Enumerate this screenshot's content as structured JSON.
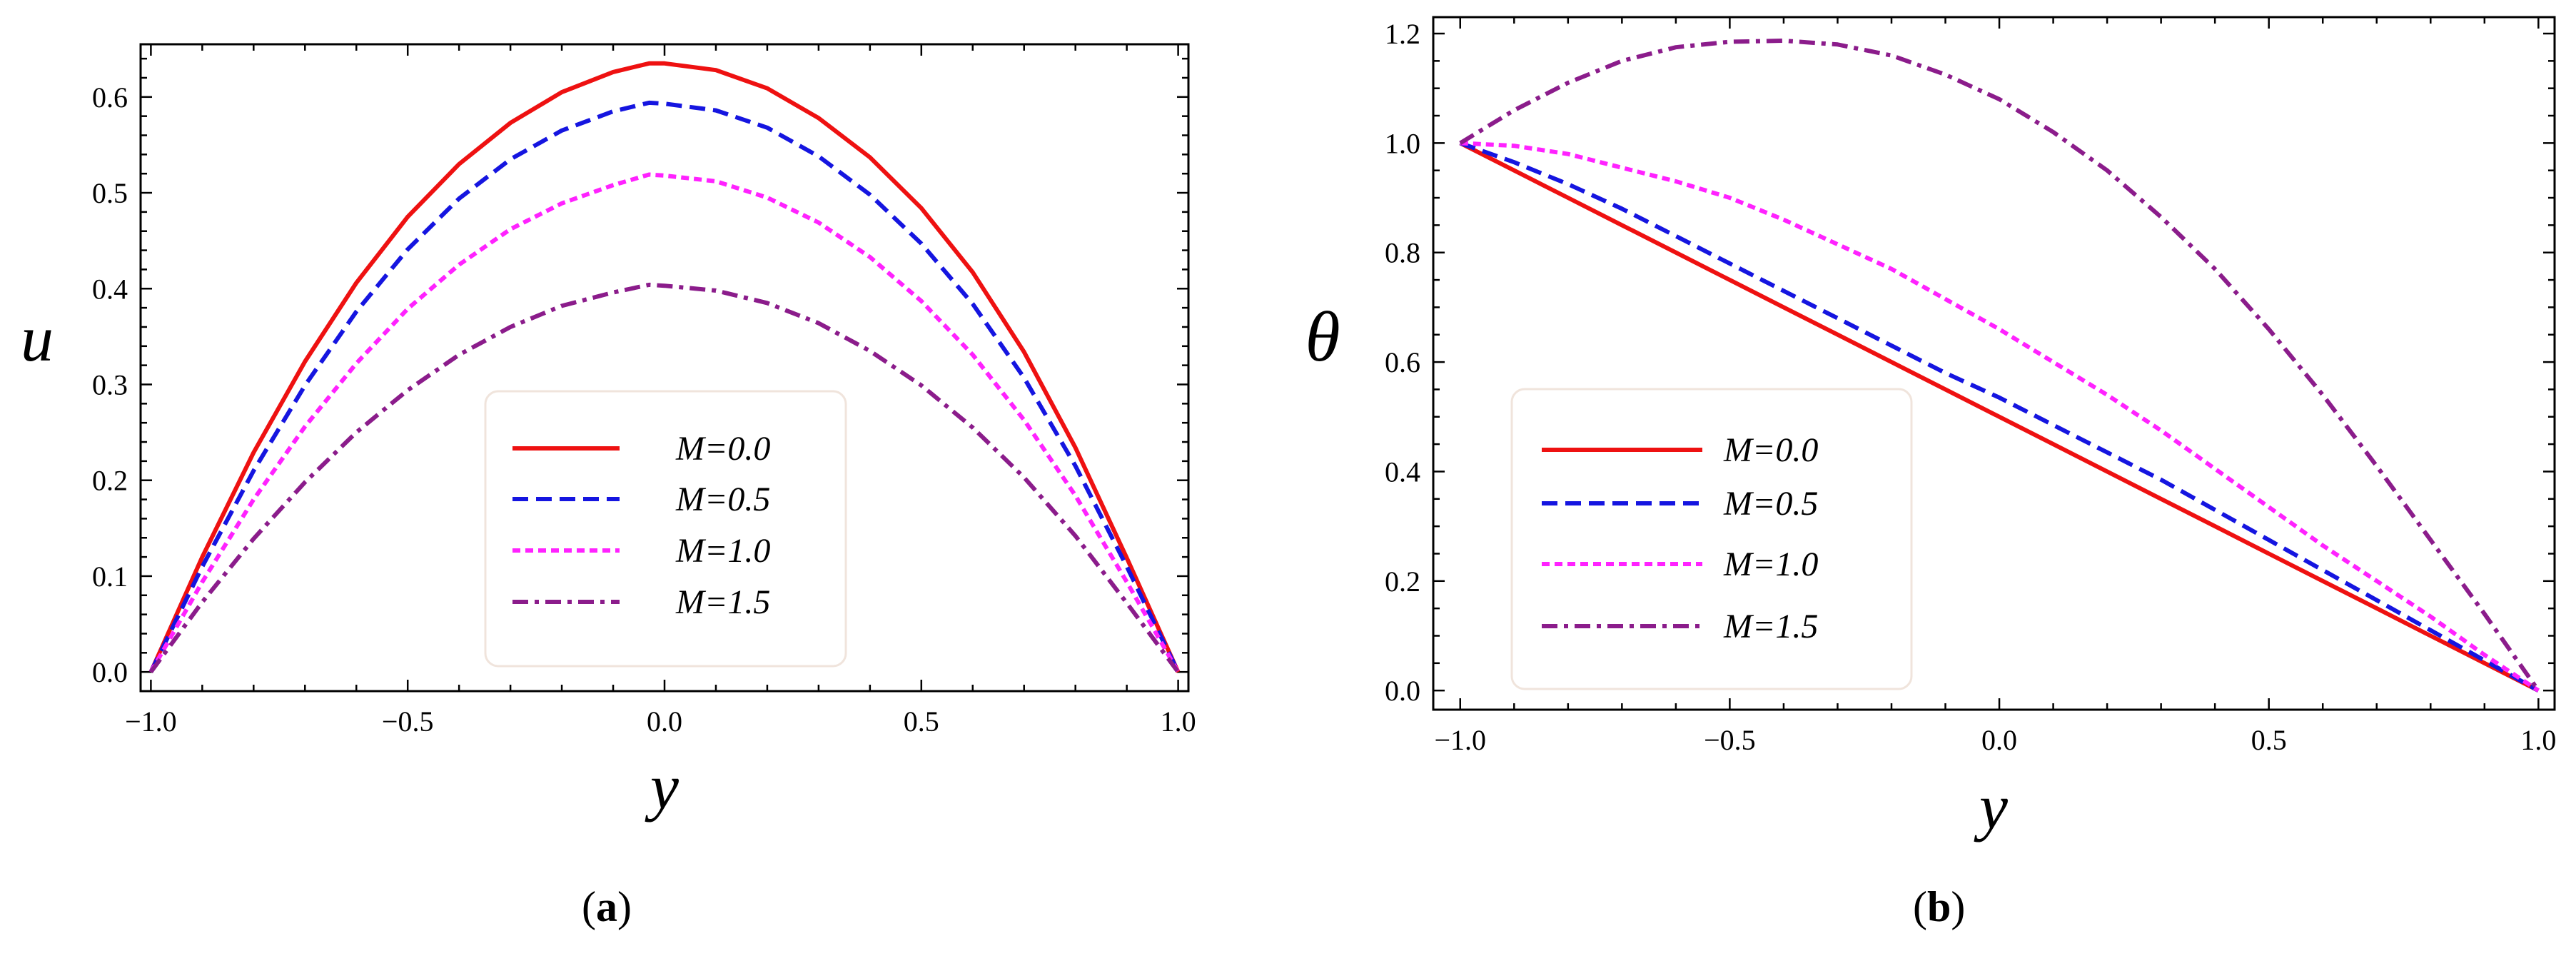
{
  "chart_data": [
    {
      "type": "line",
      "caption_open": "(",
      "caption_letter": "a",
      "caption_close": ")",
      "xlabel": "y",
      "ylabel": "u",
      "xlim": [
        -1.02,
        1.02
      ],
      "ylim": [
        -0.02,
        0.655
      ],
      "xticks": [
        -1.0,
        -0.5,
        0.0,
        0.5,
        1.0
      ],
      "xtick_labels": [
        "−1.0",
        "−0.5",
        "0.0",
        "0.5",
        "1.0"
      ],
      "yticks": [
        0.0,
        0.1,
        0.2,
        0.3,
        0.4,
        0.5,
        0.6
      ],
      "ytick_labels": [
        "0.0",
        "0.1",
        "0.2",
        "0.3",
        "0.4",
        "0.5",
        "0.6"
      ],
      "legend_position": "bottom-right",
      "x": [
        -1.0,
        -0.9,
        -0.8,
        -0.7,
        -0.6,
        -0.5,
        -0.4,
        -0.3,
        -0.2,
        -0.1,
        -0.03,
        0.0,
        0.1,
        0.2,
        0.3,
        0.4,
        0.5,
        0.6,
        0.7,
        0.8,
        0.9,
        1.0
      ],
      "series": [
        {
          "name": "M=0.0",
          "color": "#ee1111",
          "dash": "solid",
          "values": [
            0.0,
            0.12,
            0.229,
            0.324,
            0.406,
            0.475,
            0.53,
            0.573,
            0.605,
            0.626,
            0.635,
            0.635,
            0.628,
            0.609,
            0.578,
            0.537,
            0.484,
            0.417,
            0.334,
            0.234,
            0.119,
            0.0
          ]
        },
        {
          "name": "M=0.5",
          "color": "#1515e0",
          "dash": "dashed",
          "values": [
            0.0,
            0.11,
            0.21,
            0.299,
            0.376,
            0.441,
            0.494,
            0.535,
            0.565,
            0.585,
            0.594,
            0.593,
            0.586,
            0.568,
            0.538,
            0.498,
            0.447,
            0.384,
            0.307,
            0.215,
            0.11,
            0.0
          ]
        },
        {
          "name": "M=1.0",
          "color": "#ff22ff",
          "dash": "dotted",
          "values": [
            0.0,
            0.094,
            0.18,
            0.256,
            0.322,
            0.379,
            0.425,
            0.462,
            0.489,
            0.508,
            0.519,
            0.518,
            0.512,
            0.495,
            0.469,
            0.433,
            0.387,
            0.331,
            0.263,
            0.184,
            0.094,
            0.0
          ]
        },
        {
          "name": "M=1.5",
          "color": "#8b1c8b",
          "dash": "dashdot",
          "values": [
            0.0,
            0.073,
            0.139,
            0.198,
            0.25,
            0.294,
            0.331,
            0.36,
            0.382,
            0.396,
            0.404,
            0.403,
            0.398,
            0.385,
            0.364,
            0.335,
            0.299,
            0.255,
            0.203,
            0.142,
            0.072,
            0.0
          ]
        }
      ]
    },
    {
      "type": "line",
      "caption_open": "(",
      "caption_letter": "b",
      "caption_close": ")",
      "xlabel": "y",
      "ylabel": "θ",
      "xlim": [
        -1.05,
        1.03
      ],
      "ylim": [
        -0.035,
        1.23
      ],
      "xticks": [
        -1.0,
        -0.5,
        0.0,
        0.5,
        1.0
      ],
      "xtick_labels": [
        "−1.0",
        "−0.5",
        "0.0",
        "0.5",
        "1.0"
      ],
      "yticks": [
        0.0,
        0.2,
        0.4,
        0.6,
        0.8,
        1.0,
        1.2
      ],
      "ytick_labels": [
        "0.0",
        "0.2",
        "0.4",
        "0.6",
        "0.8",
        "1.0",
        "1.2"
      ],
      "legend_position": "bottom-left",
      "x": [
        -1.0,
        -0.9,
        -0.8,
        -0.7,
        -0.6,
        -0.5,
        -0.4,
        -0.3,
        -0.2,
        -0.1,
        0.0,
        0.1,
        0.2,
        0.3,
        0.4,
        0.5,
        0.6,
        0.7,
        0.8,
        0.9,
        1.0
      ],
      "series": [
        {
          "name": "M=0.0",
          "color": "#ee1111",
          "dash": "solid",
          "values": [
            1.0,
            0.95,
            0.9,
            0.85,
            0.8,
            0.75,
            0.7,
            0.65,
            0.6,
            0.55,
            0.5,
            0.45,
            0.4,
            0.35,
            0.3,
            0.25,
            0.2,
            0.15,
            0.1,
            0.05,
            0.0
          ]
        },
        {
          "name": "M=0.5",
          "color": "#1515e0",
          "dash": "dashed",
          "values": [
            1.0,
            0.965,
            0.925,
            0.88,
            0.83,
            0.78,
            0.73,
            0.68,
            0.63,
            0.58,
            0.535,
            0.485,
            0.435,
            0.385,
            0.33,
            0.275,
            0.22,
            0.165,
            0.11,
            0.055,
            0.0
          ]
        },
        {
          "name": "M=1.0",
          "color": "#ff22ff",
          "dash": "dotted",
          "values": [
            1.0,
            0.995,
            0.98,
            0.955,
            0.93,
            0.9,
            0.86,
            0.815,
            0.77,
            0.715,
            0.66,
            0.6,
            0.54,
            0.475,
            0.405,
            0.335,
            0.265,
            0.2,
            0.135,
            0.065,
            0.0
          ]
        },
        {
          "name": "M=1.5",
          "color": "#8b1c8b",
          "dash": "dashdot",
          "values": [
            1.0,
            1.06,
            1.11,
            1.15,
            1.175,
            1.185,
            1.187,
            1.18,
            1.16,
            1.125,
            1.08,
            1.02,
            0.95,
            0.865,
            0.77,
            0.66,
            0.54,
            0.41,
            0.275,
            0.14,
            0.0
          ]
        }
      ]
    }
  ]
}
